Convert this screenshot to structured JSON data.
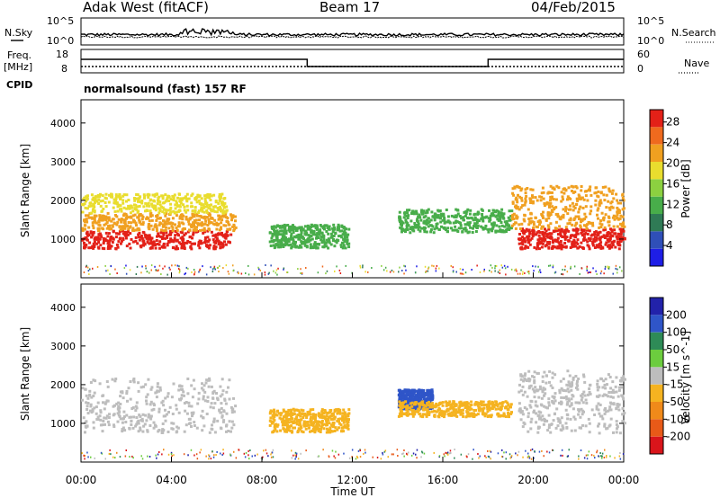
{
  "header": {
    "title": "Adak West (fitACF)",
    "beam": "Beam 17",
    "date": "04/Feb/2015"
  },
  "noise_panel": {
    "left_label": "N.Sky",
    "right_label": "N.Search",
    "ticks_left": [
      "10^5",
      "10^0"
    ],
    "ticks_right": [
      "10^5",
      "10^0"
    ]
  },
  "freq_panel": {
    "left_label_line1": "Freq.",
    "left_label_line2": "[MHz]",
    "right_label": "Nave",
    "left_ticks": [
      "18",
      "8"
    ],
    "right_ticks": [
      "60",
      "0"
    ],
    "freq_levels": [
      {
        "from": 0,
        "to": 10,
        "level": "high"
      },
      {
        "from": 10,
        "to": 18,
        "level": "low"
      },
      {
        "from": 18,
        "to": 24,
        "level": "high"
      }
    ]
  },
  "cpid": {
    "label": "CPID",
    "mode": "normalsound (fast) 157 RF"
  },
  "chart_data": [
    {
      "type": "heatmap",
      "name": "power",
      "ylabel": "Slant Range [km]",
      "ylim": [
        0,
        4600
      ],
      "yticks": [
        "1000",
        "2000",
        "3000",
        "4000"
      ],
      "xlim": [
        0,
        24
      ],
      "colorbar": {
        "label": "Power [dB]",
        "ticks": [
          "4",
          "8",
          "12",
          "16",
          "20",
          "24",
          "28"
        ],
        "colors": [
          "#1e1ee6",
          "#2f4fb8",
          "#2f7a55",
          "#48ad4a",
          "#8cd040",
          "#e9dd2e",
          "#f0a020",
          "#ef6a1e",
          "#e32118"
        ]
      },
      "regions": [
        {
          "t0": 0.0,
          "t1": 6.6,
          "r0": 780,
          "r1": 1250,
          "level": "28"
        },
        {
          "t0": 0.0,
          "t1": 6.8,
          "r0": 1250,
          "r1": 1700,
          "level": "20"
        },
        {
          "t0": 0.0,
          "t1": 6.4,
          "r0": 1700,
          "r1": 2200,
          "level": "16"
        },
        {
          "t0": 8.3,
          "t1": 11.8,
          "r0": 800,
          "r1": 1400,
          "level": "12"
        },
        {
          "t0": 14.0,
          "t1": 19.0,
          "r0": 1200,
          "r1": 1800,
          "level": "12"
        },
        {
          "t0": 19.3,
          "t1": 24.0,
          "r0": 780,
          "r1": 1300,
          "level": "28"
        },
        {
          "t0": 19.0,
          "t1": 24.0,
          "r0": 1300,
          "r1": 2400,
          "level": "20"
        }
      ]
    },
    {
      "type": "heatmap",
      "name": "velocity",
      "ylabel": "Slant Range [km]",
      "ylim": [
        0,
        4600
      ],
      "yticks": [
        "1000",
        "2000",
        "3000",
        "4000"
      ],
      "xlim": [
        0,
        24
      ],
      "xlabel": "Time UT",
      "xticks": [
        "00:00",
        "04:00",
        "08:00",
        "12:00",
        "16:00",
        "20:00",
        "00:00"
      ],
      "colorbar": {
        "label": "Velocity [m s^-1]",
        "ticks": [
          "200",
          "100",
          "50",
          "15",
          "-15",
          "-50",
          "-100",
          "-200"
        ],
        "colors": [
          "#2222aa",
          "#2f55c8",
          "#2e8b57",
          "#6ccd3e",
          "#bdbdbd",
          "#f5b320",
          "#f08a1a",
          "#e85a18",
          "#d9151b"
        ]
      },
      "regions": [
        {
          "t0": 0.0,
          "t1": 6.8,
          "r0": 780,
          "r1": 2200,
          "level": "ground"
        },
        {
          "t0": 8.3,
          "t1": 11.8,
          "r0": 800,
          "r1": 1400,
          "level": "-50"
        },
        {
          "t0": 14.0,
          "t1": 15.5,
          "r0": 1400,
          "r1": 1900,
          "level": "100"
        },
        {
          "t0": 14.0,
          "t1": 19.0,
          "r0": 1200,
          "r1": 1600,
          "level": "-50"
        },
        {
          "t0": 19.3,
          "t1": 24.0,
          "r0": 780,
          "r1": 2400,
          "level": "ground"
        }
      ]
    }
  ]
}
